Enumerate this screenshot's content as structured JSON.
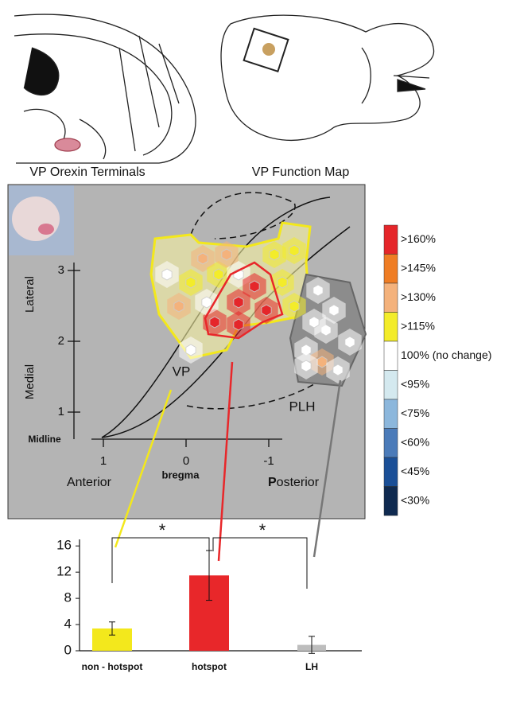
{
  "panels": {
    "left_label": "VP Orexin Terminals",
    "right_label": "VP Function Map"
  },
  "map": {
    "y_axis_top": "Lateral",
    "y_axis_bottom": "Medial",
    "y_ticks": [
      1,
      2,
      3
    ],
    "x_ticks": [
      1,
      0,
      -1
    ],
    "origin_label": "Midline",
    "x_left": "Anterior",
    "x_center": "bregma",
    "x_right_initial": "P",
    "x_right_rest": "osterior",
    "region_vp": "VP",
    "region_plh": "PLH"
  },
  "legend": {
    "entries": [
      {
        "label": ">160%",
        "color": "#e5262a"
      },
      {
        "label": ">145%",
        "color": "#ef7d24"
      },
      {
        "label": ">130%",
        "color": "#f4b27c"
      },
      {
        "label": ">115%",
        "color": "#f3ec2a"
      },
      {
        "label": "100% (no change)",
        "color": "#ffffff"
      },
      {
        "label": "<95%",
        "color": "#d4e9ef"
      },
      {
        "label": "<75%",
        "color": "#8cb7dc"
      },
      {
        "label": "<60%",
        "color": "#4b7bb9"
      },
      {
        "label": "<45%",
        "color": "#1a4f97"
      },
      {
        "label": "<30%",
        "color": "#0f2a50"
      }
    ]
  },
  "chart_data": {
    "type": "bar",
    "categories": [
      "non - hotspot",
      "hotspot",
      "LH"
    ],
    "values": [
      3.4,
      11.5,
      0.9
    ],
    "errors": [
      1.0,
      3.8,
      1.3
    ],
    "colors": [
      "#f3e81c",
      "#e8272a",
      "#bdbdbd"
    ],
    "ylim": [
      0,
      17
    ],
    "yticks": [
      0,
      4,
      8,
      12,
      16
    ],
    "annotations": [
      "*",
      "*"
    ]
  }
}
